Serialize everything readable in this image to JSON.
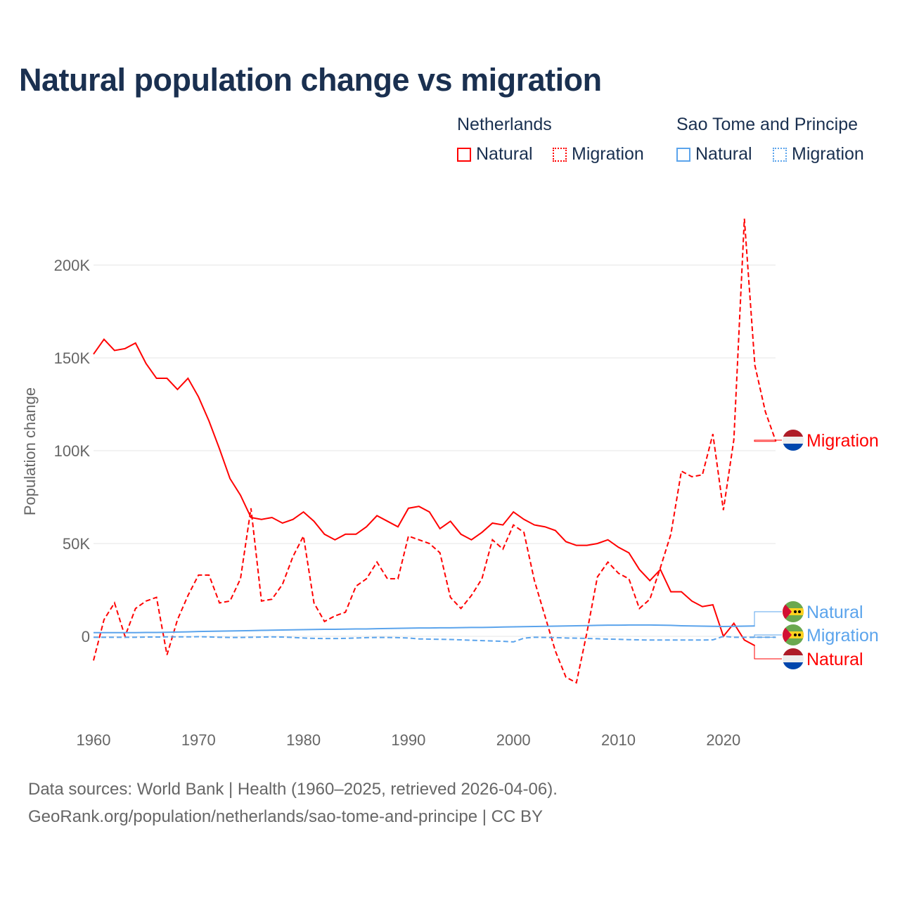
{
  "title": "Natural population change vs migration",
  "legend": {
    "groups": [
      {
        "name": "Netherlands",
        "items": [
          "Natural",
          "Migration"
        ],
        "color": "#ff0000"
      },
      {
        "name": "Sao Tome and Principe",
        "items": [
          "Natural",
          "Migration"
        ],
        "color": "#5ba4ec"
      }
    ]
  },
  "footer": {
    "line1": "Data sources: World Bank | Health (1960–2025, retrieved 2026-04-06).",
    "line2": "GeoRank.org/population/netherlands/sao-tome-and-principe | CC BY"
  },
  "chart_data": {
    "type": "line",
    "title": "Natural population change vs migration",
    "xlabel": "",
    "ylabel": "Population change",
    "xlim": [
      1960,
      2025
    ],
    "ylim": [
      -40000,
      225000
    ],
    "x_ticks": [
      1960,
      1970,
      1980,
      1990,
      2000,
      2010,
      2020
    ],
    "y_ticks": [
      {
        "v": 0,
        "l": "0"
      },
      {
        "v": 50000,
        "l": "50K"
      },
      {
        "v": 100000,
        "l": "100K"
      },
      {
        "v": 150000,
        "l": "150K"
      },
      {
        "v": 200000,
        "l": "200K"
      }
    ],
    "series": [
      {
        "name": "Natural",
        "country": "Netherlands",
        "color": "#ff0000",
        "dash": false,
        "start": 1960,
        "end_label": "Natural",
        "values": [
          152,
          160,
          154,
          155,
          158,
          147,
          139,
          139,
          133,
          139,
          129,
          116,
          101,
          85,
          76,
          64,
          63,
          64,
          61,
          63,
          67,
          62,
          55,
          52,
          55,
          55,
          59,
          65,
          62,
          59,
          69,
          70,
          67,
          58,
          62,
          55,
          52,
          56,
          61,
          60,
          67,
          63,
          60,
          59,
          57,
          51,
          49,
          49,
          50,
          52,
          48,
          45,
          36,
          30,
          36,
          24,
          24,
          19,
          16,
          17,
          0,
          7,
          -2,
          -5
        ]
      },
      {
        "name": "Migration",
        "country": "Netherlands",
        "color": "#ff0000",
        "dash": true,
        "start": 1960,
        "end_label": "Migration",
        "values": [
          -13,
          9,
          18,
          0,
          15,
          19,
          21,
          -10,
          9,
          22,
          33,
          33,
          18,
          19,
          31,
          69,
          19,
          20,
          28,
          43,
          54,
          18,
          8,
          11,
          13,
          27,
          31,
          40,
          31,
          31,
          54,
          52,
          50,
          45,
          21,
          15,
          22,
          31,
          52,
          47,
          60,
          56,
          30,
          11,
          -8,
          -22,
          -25,
          2,
          32,
          40,
          34,
          31,
          15,
          20,
          37,
          55,
          89,
          86,
          87,
          109,
          68,
          106,
          225,
          146,
          121,
          105
        ]
      },
      {
        "name": "Natural",
        "country": "Sao Tome and Principe",
        "color": "#5ba4ec",
        "dash": false,
        "start": 1960,
        "end_label": "Natural",
        "values": [
          2,
          2,
          2,
          2,
          2,
          2.1,
          2.1,
          2.2,
          2.3,
          2.4,
          2.6,
          2.7,
          2.8,
          2.9,
          3,
          3.1,
          3.2,
          3.3,
          3.4,
          3.5,
          3.6,
          3.7,
          3.8,
          3.8,
          3.9,
          4,
          4,
          4.1,
          4.2,
          4.3,
          4.4,
          4.5,
          4.5,
          4.6,
          4.6,
          4.7,
          4.8,
          4.8,
          4.9,
          5,
          5.1,
          5.2,
          5.3,
          5.4,
          5.5,
          5.6,
          5.7,
          5.8,
          5.9,
          6,
          6,
          6.1,
          6.1,
          6.1,
          6,
          5.9,
          5.7,
          5.6,
          5.5,
          5.4,
          5.3,
          5.4,
          5.5,
          5.6
        ]
      },
      {
        "name": "Migration",
        "country": "Sao Tome and Principe",
        "color": "#5ba4ec",
        "dash": true,
        "start": 1960,
        "end_label": "Migration",
        "values": [
          -0.5,
          -0.5,
          -0.5,
          -0.5,
          -0.5,
          -0.4,
          -0.4,
          -0.3,
          -0.3,
          -0.3,
          -0.2,
          -0.3,
          -0.5,
          -0.6,
          -0.6,
          -0.5,
          -0.4,
          -0.3,
          -0.4,
          -0.6,
          -0.9,
          -1.1,
          -1.2,
          -1.2,
          -1.1,
          -0.9,
          -0.7,
          -0.6,
          -0.6,
          -0.7,
          -0.9,
          -1.4,
          -1.5,
          -1.6,
          -1.7,
          -1.9,
          -2.1,
          -2.3,
          -2.5,
          -2.7,
          -3,
          -1,
          -0.5,
          -0.6,
          -0.7,
          -0.9,
          -1,
          -1.1,
          -1.3,
          -1.5,
          -1.6,
          -1.8,
          -1.9,
          -2,
          -2,
          -2,
          -2,
          -2,
          -2,
          -1.9,
          0,
          -0.5,
          -0.5,
          -0.5,
          -0.5,
          -0.5
        ]
      }
    ]
  }
}
